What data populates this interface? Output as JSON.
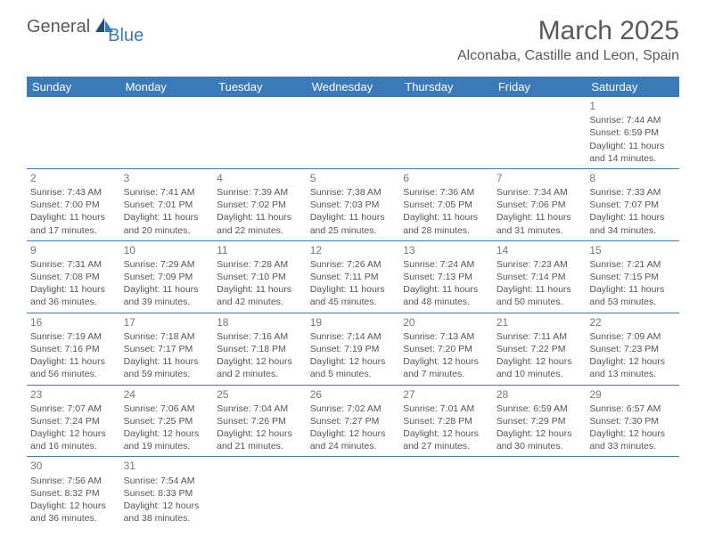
{
  "logo": {
    "text1": "General",
    "text2": "Blue"
  },
  "title": "March 2025",
  "location": "Alconaba, Castille and Leon, Spain",
  "colors": {
    "header_bg": "#3a7ab8",
    "header_text": "#ffffff",
    "text": "#555555",
    "title_text": "#5a5a5a",
    "border": "#3a7ab8"
  },
  "weekdays": [
    "Sunday",
    "Monday",
    "Tuesday",
    "Wednesday",
    "Thursday",
    "Friday",
    "Saturday"
  ],
  "weeks": [
    [
      null,
      null,
      null,
      null,
      null,
      null,
      {
        "day": "1",
        "sunrise": "Sunrise: 7:44 AM",
        "sunset": "Sunset: 6:59 PM",
        "daylight": "Daylight: 11 hours and 14 minutes."
      }
    ],
    [
      {
        "day": "2",
        "sunrise": "Sunrise: 7:43 AM",
        "sunset": "Sunset: 7:00 PM",
        "daylight": "Daylight: 11 hours and 17 minutes."
      },
      {
        "day": "3",
        "sunrise": "Sunrise: 7:41 AM",
        "sunset": "Sunset: 7:01 PM",
        "daylight": "Daylight: 11 hours and 20 minutes."
      },
      {
        "day": "4",
        "sunrise": "Sunrise: 7:39 AM",
        "sunset": "Sunset: 7:02 PM",
        "daylight": "Daylight: 11 hours and 22 minutes."
      },
      {
        "day": "5",
        "sunrise": "Sunrise: 7:38 AM",
        "sunset": "Sunset: 7:03 PM",
        "daylight": "Daylight: 11 hours and 25 minutes."
      },
      {
        "day": "6",
        "sunrise": "Sunrise: 7:36 AM",
        "sunset": "Sunset: 7:05 PM",
        "daylight": "Daylight: 11 hours and 28 minutes."
      },
      {
        "day": "7",
        "sunrise": "Sunrise: 7:34 AM",
        "sunset": "Sunset: 7:06 PM",
        "daylight": "Daylight: 11 hours and 31 minutes."
      },
      {
        "day": "8",
        "sunrise": "Sunrise: 7:33 AM",
        "sunset": "Sunset: 7:07 PM",
        "daylight": "Daylight: 11 hours and 34 minutes."
      }
    ],
    [
      {
        "day": "9",
        "sunrise": "Sunrise: 7:31 AM",
        "sunset": "Sunset: 7:08 PM",
        "daylight": "Daylight: 11 hours and 36 minutes."
      },
      {
        "day": "10",
        "sunrise": "Sunrise: 7:29 AM",
        "sunset": "Sunset: 7:09 PM",
        "daylight": "Daylight: 11 hours and 39 minutes."
      },
      {
        "day": "11",
        "sunrise": "Sunrise: 7:28 AM",
        "sunset": "Sunset: 7:10 PM",
        "daylight": "Daylight: 11 hours and 42 minutes."
      },
      {
        "day": "12",
        "sunrise": "Sunrise: 7:26 AM",
        "sunset": "Sunset: 7:11 PM",
        "daylight": "Daylight: 11 hours and 45 minutes."
      },
      {
        "day": "13",
        "sunrise": "Sunrise: 7:24 AM",
        "sunset": "Sunset: 7:13 PM",
        "daylight": "Daylight: 11 hours and 48 minutes."
      },
      {
        "day": "14",
        "sunrise": "Sunrise: 7:23 AM",
        "sunset": "Sunset: 7:14 PM",
        "daylight": "Daylight: 11 hours and 50 minutes."
      },
      {
        "day": "15",
        "sunrise": "Sunrise: 7:21 AM",
        "sunset": "Sunset: 7:15 PM",
        "daylight": "Daylight: 11 hours and 53 minutes."
      }
    ],
    [
      {
        "day": "16",
        "sunrise": "Sunrise: 7:19 AM",
        "sunset": "Sunset: 7:16 PM",
        "daylight": "Daylight: 11 hours and 56 minutes."
      },
      {
        "day": "17",
        "sunrise": "Sunrise: 7:18 AM",
        "sunset": "Sunset: 7:17 PM",
        "daylight": "Daylight: 11 hours and 59 minutes."
      },
      {
        "day": "18",
        "sunrise": "Sunrise: 7:16 AM",
        "sunset": "Sunset: 7:18 PM",
        "daylight": "Daylight: 12 hours and 2 minutes."
      },
      {
        "day": "19",
        "sunrise": "Sunrise: 7:14 AM",
        "sunset": "Sunset: 7:19 PM",
        "daylight": "Daylight: 12 hours and 5 minutes."
      },
      {
        "day": "20",
        "sunrise": "Sunrise: 7:13 AM",
        "sunset": "Sunset: 7:20 PM",
        "daylight": "Daylight: 12 hours and 7 minutes."
      },
      {
        "day": "21",
        "sunrise": "Sunrise: 7:11 AM",
        "sunset": "Sunset: 7:22 PM",
        "daylight": "Daylight: 12 hours and 10 minutes."
      },
      {
        "day": "22",
        "sunrise": "Sunrise: 7:09 AM",
        "sunset": "Sunset: 7:23 PM",
        "daylight": "Daylight: 12 hours and 13 minutes."
      }
    ],
    [
      {
        "day": "23",
        "sunrise": "Sunrise: 7:07 AM",
        "sunset": "Sunset: 7:24 PM",
        "daylight": "Daylight: 12 hours and 16 minutes."
      },
      {
        "day": "24",
        "sunrise": "Sunrise: 7:06 AM",
        "sunset": "Sunset: 7:25 PM",
        "daylight": "Daylight: 12 hours and 19 minutes."
      },
      {
        "day": "25",
        "sunrise": "Sunrise: 7:04 AM",
        "sunset": "Sunset: 7:26 PM",
        "daylight": "Daylight: 12 hours and 21 minutes."
      },
      {
        "day": "26",
        "sunrise": "Sunrise: 7:02 AM",
        "sunset": "Sunset: 7:27 PM",
        "daylight": "Daylight: 12 hours and 24 minutes."
      },
      {
        "day": "27",
        "sunrise": "Sunrise: 7:01 AM",
        "sunset": "Sunset: 7:28 PM",
        "daylight": "Daylight: 12 hours and 27 minutes."
      },
      {
        "day": "28",
        "sunrise": "Sunrise: 6:59 AM",
        "sunset": "Sunset: 7:29 PM",
        "daylight": "Daylight: 12 hours and 30 minutes."
      },
      {
        "day": "29",
        "sunrise": "Sunrise: 6:57 AM",
        "sunset": "Sunset: 7:30 PM",
        "daylight": "Daylight: 12 hours and 33 minutes."
      }
    ],
    [
      {
        "day": "30",
        "sunrise": "Sunrise: 7:56 AM",
        "sunset": "Sunset: 8:32 PM",
        "daylight": "Daylight: 12 hours and 36 minutes."
      },
      {
        "day": "31",
        "sunrise": "Sunrise: 7:54 AM",
        "sunset": "Sunset: 8:33 PM",
        "daylight": "Daylight: 12 hours and 38 minutes."
      },
      null,
      null,
      null,
      null,
      null
    ]
  ]
}
